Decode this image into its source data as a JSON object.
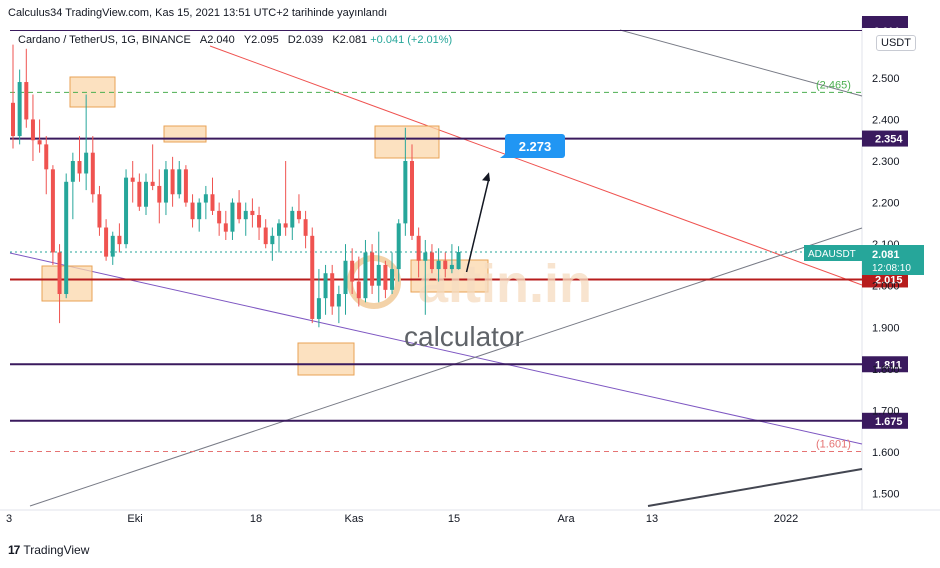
{
  "header": {
    "published": "Calculus34 TradingView.com, Kas 15, 2021 13:51 UTC+2 tarihinde yayınlandı"
  },
  "legend": {
    "symbol": "Cardano / TetherUS, 1G, BINANCE",
    "open": "A2.040",
    "high": "Y2.095",
    "low": "D2.039",
    "close": "K2.081",
    "change": "+0.041 (+2.01%)"
  },
  "currency_button": "USDT",
  "footer": {
    "brand": "TradingView"
  },
  "watermark": {
    "brand": "altin.in",
    "sub": "calculator"
  },
  "colors": {
    "up": "#26a69a",
    "down": "#ef5350",
    "level": "#3a1a5e",
    "red_level": "#b71c1c",
    "callout": "#2196f3",
    "green_dash": "#4caf50",
    "red_dash": "#e57373",
    "highlight": "#f6b26b"
  },
  "chart_data": {
    "type": "candlestick",
    "symbol": "ADAUSDT",
    "timeframe": "1G",
    "x_ticks": [
      "3",
      "Eki",
      "18",
      "Kas",
      "15",
      "Ara",
      "13",
      "2022"
    ],
    "y_ticks": [
      "2.500",
      "2.400",
      "2.300",
      "2.200",
      "2.100",
      "2.000",
      "1.900",
      "1.800",
      "1.700",
      "1.600",
      "1.500"
    ],
    "ylim": [
      1.47,
      2.62
    ],
    "y_axis": "right",
    "candles": [
      {
        "o": 2.44,
        "h": 2.58,
        "l": 2.33,
        "c": 2.36
      },
      {
        "o": 2.36,
        "h": 2.52,
        "l": 2.34,
        "c": 2.49
      },
      {
        "o": 2.49,
        "h": 2.57,
        "l": 2.38,
        "c": 2.4
      },
      {
        "o": 2.4,
        "h": 2.46,
        "l": 2.3,
        "c": 2.35
      },
      {
        "o": 2.35,
        "h": 2.4,
        "l": 2.32,
        "c": 2.34
      },
      {
        "o": 2.34,
        "h": 2.36,
        "l": 2.22,
        "c": 2.28
      },
      {
        "o": 2.28,
        "h": 2.29,
        "l": 2.05,
        "c": 2.08
      },
      {
        "o": 2.08,
        "h": 2.1,
        "l": 1.91,
        "c": 1.98
      },
      {
        "o": 1.98,
        "h": 2.27,
        "l": 1.97,
        "c": 2.25
      },
      {
        "o": 2.25,
        "h": 2.32,
        "l": 2.16,
        "c": 2.3
      },
      {
        "o": 2.3,
        "h": 2.36,
        "l": 2.25,
        "c": 2.27
      },
      {
        "o": 2.27,
        "h": 2.46,
        "l": 2.23,
        "c": 2.32
      },
      {
        "o": 2.32,
        "h": 2.36,
        "l": 2.2,
        "c": 2.22
      },
      {
        "o": 2.22,
        "h": 2.24,
        "l": 2.12,
        "c": 2.14
      },
      {
        "o": 2.14,
        "h": 2.16,
        "l": 2.06,
        "c": 2.07
      },
      {
        "o": 2.07,
        "h": 2.13,
        "l": 2.05,
        "c": 2.12
      },
      {
        "o": 2.12,
        "h": 2.15,
        "l": 2.08,
        "c": 2.1
      },
      {
        "o": 2.1,
        "h": 2.28,
        "l": 2.09,
        "c": 2.26
      },
      {
        "o": 2.26,
        "h": 2.3,
        "l": 2.2,
        "c": 2.25
      },
      {
        "o": 2.25,
        "h": 2.27,
        "l": 2.18,
        "c": 2.19
      },
      {
        "o": 2.19,
        "h": 2.27,
        "l": 2.17,
        "c": 2.25
      },
      {
        "o": 2.25,
        "h": 2.34,
        "l": 2.23,
        "c": 2.24
      },
      {
        "o": 2.24,
        "h": 2.28,
        "l": 2.15,
        "c": 2.2
      },
      {
        "o": 2.2,
        "h": 2.3,
        "l": 2.17,
        "c": 2.28
      },
      {
        "o": 2.28,
        "h": 2.31,
        "l": 2.19,
        "c": 2.22
      },
      {
        "o": 2.22,
        "h": 2.3,
        "l": 2.21,
        "c": 2.28
      },
      {
        "o": 2.28,
        "h": 2.29,
        "l": 2.19,
        "c": 2.2
      },
      {
        "o": 2.2,
        "h": 2.22,
        "l": 2.14,
        "c": 2.16
      },
      {
        "o": 2.16,
        "h": 2.21,
        "l": 2.13,
        "c": 2.2
      },
      {
        "o": 2.2,
        "h": 2.24,
        "l": 2.16,
        "c": 2.22
      },
      {
        "o": 2.22,
        "h": 2.26,
        "l": 2.17,
        "c": 2.18
      },
      {
        "o": 2.18,
        "h": 2.2,
        "l": 2.12,
        "c": 2.15
      },
      {
        "o": 2.15,
        "h": 2.18,
        "l": 2.11,
        "c": 2.13
      },
      {
        "o": 2.13,
        "h": 2.21,
        "l": 2.11,
        "c": 2.2
      },
      {
        "o": 2.2,
        "h": 2.23,
        "l": 2.15,
        "c": 2.16
      },
      {
        "o": 2.16,
        "h": 2.2,
        "l": 2.12,
        "c": 2.18
      },
      {
        "o": 2.18,
        "h": 2.21,
        "l": 2.14,
        "c": 2.17
      },
      {
        "o": 2.17,
        "h": 2.19,
        "l": 2.11,
        "c": 2.14
      },
      {
        "o": 2.14,
        "h": 2.16,
        "l": 2.09,
        "c": 2.1
      },
      {
        "o": 2.1,
        "h": 2.14,
        "l": 2.06,
        "c": 2.12
      },
      {
        "o": 2.12,
        "h": 2.16,
        "l": 2.08,
        "c": 2.15
      },
      {
        "o": 2.15,
        "h": 2.3,
        "l": 2.12,
        "c": 2.14
      },
      {
        "o": 2.14,
        "h": 2.19,
        "l": 2.11,
        "c": 2.18
      },
      {
        "o": 2.18,
        "h": 2.22,
        "l": 2.15,
        "c": 2.16
      },
      {
        "o": 2.16,
        "h": 2.18,
        "l": 2.09,
        "c": 2.12
      },
      {
        "o": 2.12,
        "h": 2.14,
        "l": 1.91,
        "c": 1.92
      },
      {
        "o": 1.92,
        "h": 2.04,
        "l": 1.9,
        "c": 1.97
      },
      {
        "o": 1.97,
        "h": 2.05,
        "l": 1.93,
        "c": 2.03
      },
      {
        "o": 2.03,
        "h": 2.05,
        "l": 1.93,
        "c": 1.95
      },
      {
        "o": 1.95,
        "h": 2.0,
        "l": 1.91,
        "c": 1.98
      },
      {
        "o": 1.98,
        "h": 2.1,
        "l": 1.93,
        "c": 2.06
      },
      {
        "o": 2.06,
        "h": 2.09,
        "l": 1.98,
        "c": 2.01
      },
      {
        "o": 2.01,
        "h": 2.07,
        "l": 1.95,
        "c": 1.97
      },
      {
        "o": 1.97,
        "h": 2.11,
        "l": 1.96,
        "c": 2.08
      },
      {
        "o": 2.08,
        "h": 2.1,
        "l": 1.98,
        "c": 2.0
      },
      {
        "o": 2.0,
        "h": 2.13,
        "l": 1.96,
        "c": 2.05
      },
      {
        "o": 2.05,
        "h": 2.06,
        "l": 1.97,
        "c": 1.99
      },
      {
        "o": 1.99,
        "h": 2.08,
        "l": 1.98,
        "c": 2.04
      },
      {
        "o": 2.04,
        "h": 2.16,
        "l": 2.01,
        "c": 2.15
      },
      {
        "o": 2.15,
        "h": 2.38,
        "l": 2.12,
        "c": 2.3
      },
      {
        "o": 2.3,
        "h": 2.34,
        "l": 2.11,
        "c": 2.12
      },
      {
        "o": 2.12,
        "h": 2.14,
        "l": 2.02,
        "c": 2.06
      },
      {
        "o": 2.06,
        "h": 2.11,
        "l": 1.93,
        "c": 2.08
      },
      {
        "o": 2.08,
        "h": 2.1,
        "l": 2.03,
        "c": 2.04
      },
      {
        "o": 2.04,
        "h": 2.09,
        "l": 2.01,
        "c": 2.06
      },
      {
        "o": 2.06,
        "h": 2.08,
        "l": 2.02,
        "c": 2.04
      },
      {
        "o": 2.04,
        "h": 2.1,
        "l": 2.03,
        "c": 2.05
      },
      {
        "o": 2.04,
        "h": 2.095,
        "l": 2.039,
        "c": 2.081
      }
    ],
    "horizontal_levels": [
      {
        "value": 2.354,
        "label": "2.354",
        "style": "solid",
        "color": "#3a1a5e"
      },
      {
        "value": 2.015,
        "label": "2.015",
        "style": "solid",
        "color": "#b71c1c"
      },
      {
        "value": 1.811,
        "label": "1.811",
        "style": "solid",
        "color": "#3a1a5e"
      },
      {
        "value": 1.675,
        "label": "1.675",
        "style": "solid",
        "color": "#3a1a5e"
      },
      {
        "value": 2.465,
        "label": "(2.465)",
        "style": "dashed",
        "color": "#4caf50"
      },
      {
        "value": 1.601,
        "label": "(1.601)",
        "style": "dashed",
        "color": "#e57373"
      },
      {
        "value": 2.614,
        "label": "2.614",
        "style": "solid",
        "color": "#3a1a5e"
      }
    ],
    "current_price": {
      "symbol": "ADAUSDT",
      "value": "2.081",
      "countdown": "12:08:10"
    },
    "target": {
      "value": 2.273,
      "label": "2.273"
    }
  }
}
